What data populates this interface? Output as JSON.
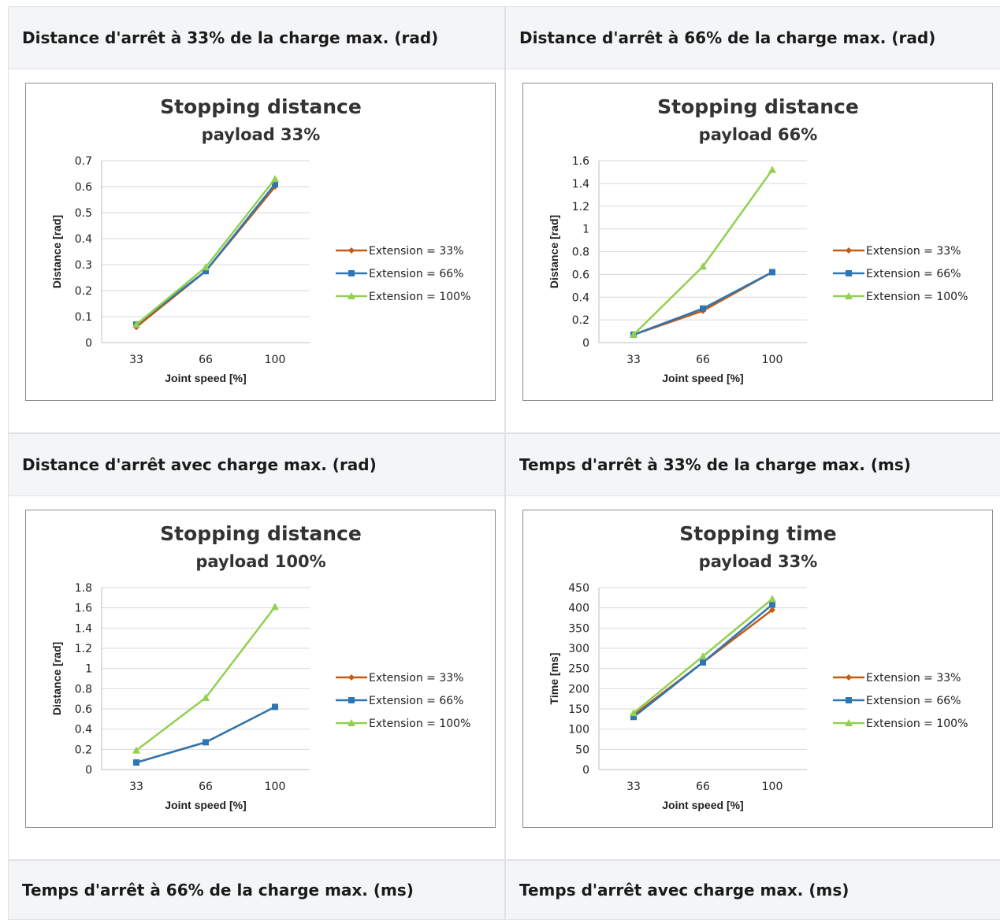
{
  "panels": [
    {
      "header": "Distance d'arrêt à 33% de la charge max. (rad)",
      "chart_data": {
        "type": "line",
        "title": "Stopping distance",
        "subtitle": "payload 33%",
        "xlabel": "Joint speed [%]",
        "ylabel": "Distance [rad]",
        "categories": [
          "33",
          "66",
          "100"
        ],
        "ylim": [
          0,
          0.7
        ],
        "yticks": [
          "0",
          "0.1",
          "0.2",
          "0.3",
          "0.4",
          "0.5",
          "0.6",
          "0.7"
        ],
        "grid": true,
        "legend_position": "right",
        "series": [
          {
            "name": "Extension = 33%",
            "color": "#c55a11",
            "marker": "diamond",
            "values": [
              0.06,
              0.275,
              0.6
            ]
          },
          {
            "name": "Extension = 66%",
            "color": "#2e75b6",
            "marker": "square",
            "values": [
              0.07,
              0.275,
              0.61
            ]
          },
          {
            "name": "Extension = 100%",
            "color": "#92d050",
            "marker": "triangle",
            "values": [
              0.07,
              0.29,
              0.63
            ]
          }
        ]
      }
    },
    {
      "header": "Distance d'arrêt à 66% de la charge max. (rad)",
      "chart_data": {
        "type": "line",
        "title": "Stopping distance",
        "subtitle": "payload 66%",
        "xlabel": "Joint speed [%]",
        "ylabel": "Distance [rad]",
        "categories": [
          "33",
          "66",
          "100"
        ],
        "ylim": [
          0,
          1.6
        ],
        "yticks": [
          "0",
          "0.2",
          "0.4",
          "0.6",
          "0.8",
          "1",
          "1.2",
          "1.4",
          "1.6"
        ],
        "grid": true,
        "legend_position": "right",
        "series": [
          {
            "name": "Extension = 33%",
            "color": "#c55a11",
            "marker": "diamond",
            "values": [
              0.07,
              0.28,
              0.62
            ]
          },
          {
            "name": "Extension = 66%",
            "color": "#2e75b6",
            "marker": "square",
            "values": [
              0.07,
              0.3,
              0.62
            ]
          },
          {
            "name": "Extension = 100%",
            "color": "#92d050",
            "marker": "triangle",
            "values": [
              0.07,
              0.67,
              1.52
            ]
          }
        ]
      }
    },
    {
      "header": "Distance d'arrêt avec charge max. (rad)",
      "chart_data": {
        "type": "line",
        "title": "Stopping distance",
        "subtitle": "payload 100%",
        "xlabel": "Joint speed [%]",
        "ylabel": "Distance [rad]",
        "categories": [
          "33",
          "66",
          "100"
        ],
        "ylim": [
          0,
          1.8
        ],
        "yticks": [
          "0",
          "0.2",
          "0.4",
          "0.6",
          "0.8",
          "1",
          "1.2",
          "1.4",
          "1.6",
          "1.8"
        ],
        "grid": true,
        "legend_position": "right",
        "series": [
          {
            "name": "Extension = 33%",
            "color": "#c55a11",
            "marker": "diamond",
            "values": [
              0.07,
              0.27,
              0.62
            ]
          },
          {
            "name": "Extension = 66%",
            "color": "#2e75b6",
            "marker": "square",
            "values": [
              0.07,
              0.27,
              0.62
            ]
          },
          {
            "name": "Extension = 100%",
            "color": "#92d050",
            "marker": "triangle",
            "values": [
              0.19,
              0.71,
              1.61
            ]
          }
        ]
      }
    },
    {
      "header": "Temps d'arrêt à 33% de la charge max. (ms)",
      "chart_data": {
        "type": "line",
        "title": "Stopping time",
        "subtitle": "payload 33%",
        "xlabel": "Joint speed [%]",
        "ylabel": "Time [ms]",
        "categories": [
          "33",
          "66",
          "100"
        ],
        "ylim": [
          0,
          450
        ],
        "yticks": [
          "0",
          "50",
          "100",
          "150",
          "200",
          "250",
          "300",
          "350",
          "400",
          "450"
        ],
        "grid": true,
        "legend_position": "right",
        "series": [
          {
            "name": "Extension = 33%",
            "color": "#c55a11",
            "marker": "diamond",
            "values": [
              135,
              265,
              395
            ]
          },
          {
            "name": "Extension = 66%",
            "color": "#2e75b6",
            "marker": "square",
            "values": [
              130,
              265,
              408
            ]
          },
          {
            "name": "Extension = 100%",
            "color": "#92d050",
            "marker": "triangle",
            "values": [
              140,
              280,
              422
            ]
          }
        ]
      }
    }
  ],
  "footer_headers": [
    "Temps d'arrêt à 66% de la charge max. (ms)",
    "Temps d'arrêt avec charge max. (ms)"
  ]
}
